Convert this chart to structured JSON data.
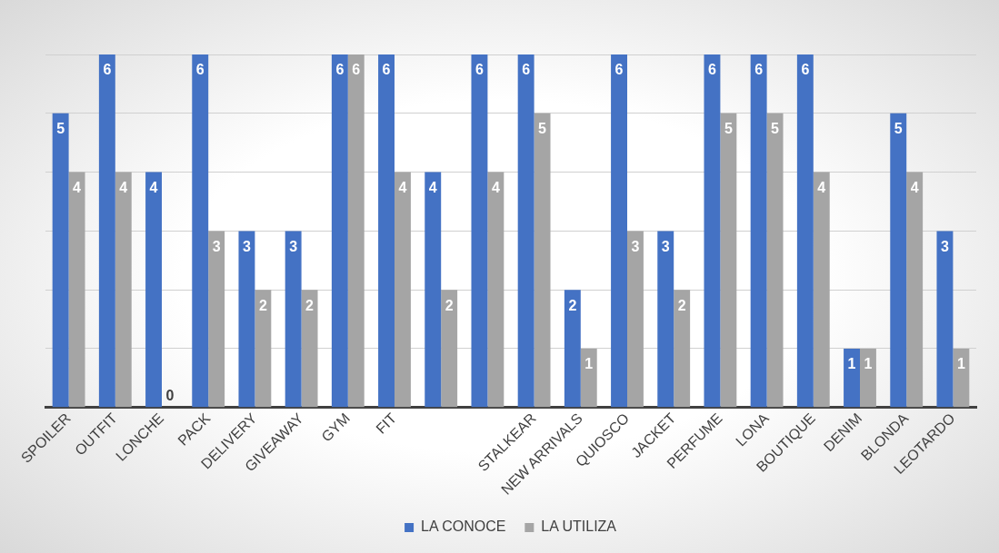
{
  "chart_data": {
    "type": "bar",
    "categories": [
      "SPOILER",
      "OUTFIT",
      "LONCHE",
      "PACK",
      "DELIVERY",
      "GIVEAWAY",
      "GYM",
      "FIT",
      null,
      null,
      "STALKEAR",
      "NEW ARRIVALS",
      "QUIOSCO",
      "JACKET",
      "PERFUME",
      "LONA",
      "BOUTIQUE",
      "DENIM",
      "BLONDA",
      "LEOTARDO"
    ],
    "series": [
      {
        "name": "LA CONOCE",
        "color": "#4472c4",
        "values": [
          5,
          6,
          4,
          6,
          3,
          3,
          6,
          6,
          4,
          6,
          6,
          2,
          6,
          3,
          6,
          6,
          6,
          1,
          5,
          3
        ]
      },
      {
        "name": "LA UTILIZA",
        "color": "#a5a5a5",
        "values": [
          4,
          4,
          0,
          3,
          2,
          2,
          6,
          4,
          2,
          4,
          5,
          1,
          3,
          2,
          5,
          5,
          4,
          1,
          4,
          1
        ]
      }
    ],
    "ylim": [
      0,
      6
    ],
    "yticks": [
      {
        "value": 0,
        "label": null
      },
      {
        "value": 1,
        "label": null
      },
      {
        "value": 2,
        "label": null
      },
      {
        "value": 3,
        "label": null
      },
      {
        "value": 4,
        "label": null
      },
      {
        "value": 5,
        "label": null
      },
      {
        "value": 6,
        "label": null
      }
    ],
    "tick_labels": "x",
    "grid": "y",
    "legend": "bottom",
    "data_labels": true
  }
}
